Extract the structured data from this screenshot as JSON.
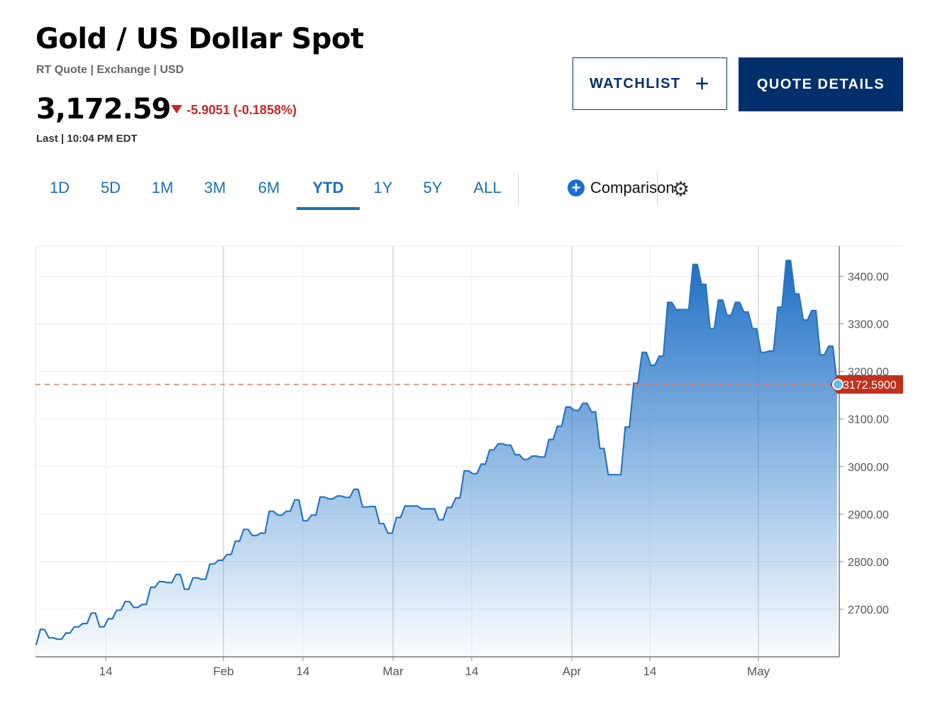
{
  "header": {
    "title": "Gold / US Dollar Spot",
    "subtitle": "RT Quote | Exchange | USD",
    "price": "3,172.59",
    "change": "-5.9051 (-0.1858%)",
    "last_label": "Last | 10:04 PM EDT"
  },
  "buttons": {
    "watchlist": "WATCHLIST",
    "watchlist_plus": "+",
    "quote_details": "QUOTE DETAILS"
  },
  "tabs": [
    "1D",
    "5D",
    "1M",
    "3M",
    "6M",
    "YTD",
    "1Y",
    "5Y",
    "ALL"
  ],
  "active_tab": "YTD",
  "comparison": {
    "label": "Comparison",
    "plus": "+"
  },
  "icons": {
    "settings": "gear-icon",
    "change_direction": "down-triangle-icon"
  },
  "colors": {
    "accent": "#1c6fb5",
    "brand": "#002f6c",
    "down": "#c62828",
    "line": "#2a74bc"
  },
  "chart_data": {
    "type": "area",
    "title": "",
    "xlabel": "",
    "ylabel": "",
    "ylim": [
      2600,
      3460
    ],
    "x_ticks": [
      "14",
      "Feb",
      "14",
      "Mar",
      "14",
      "Apr",
      "14",
      "May"
    ],
    "y_ticks": [
      "2700.00",
      "2800.00",
      "2900.00",
      "3000.00",
      "3100.00",
      "3200.00",
      "3300.00",
      "3400.00"
    ],
    "last_value_label": "3172.5900",
    "last_value": 3172.59,
    "reference_line": 3172.59,
    "grid": true,
    "values": [
      2625,
      2658,
      2657,
      2640,
      2640,
      2637,
      2637,
      2650,
      2650,
      2663,
      2663,
      2670,
      2670,
      2692,
      2692,
      2663,
      2663,
      2680,
      2680,
      2698,
      2698,
      2716,
      2716,
      2704,
      2704,
      2710,
      2710,
      2746,
      2746,
      2758,
      2758,
      2756,
      2756,
      2773,
      2773,
      2742,
      2742,
      2766,
      2766,
      2763,
      2763,
      2795,
      2795,
      2803,
      2803,
      2815,
      2815,
      2843,
      2843,
      2868,
      2868,
      2855,
      2855,
      2860,
      2860,
      2906,
      2906,
      2898,
      2898,
      2906,
      2906,
      2930,
      2930,
      2886,
      2886,
      2898,
      2898,
      2936,
      2936,
      2932,
      2932,
      2938,
      2938,
      2935,
      2935,
      2952,
      2952,
      2915,
      2915,
      2916,
      2916,
      2880,
      2880,
      2860,
      2860,
      2893,
      2893,
      2917,
      2917,
      2917,
      2917,
      2911,
      2911,
      2911,
      2911,
      2888,
      2888,
      2914,
      2914,
      2934,
      2934,
      2991,
      2991,
      2985,
      2985,
      3005,
      3005,
      3035,
      3035,
      3048,
      3048,
      3045,
      3045,
      3025,
      3025,
      3015,
      3015,
      3022,
      3022,
      3020,
      3020,
      3057,
      3057,
      3085,
      3085,
      3125,
      3125,
      3118,
      3118,
      3133,
      3133,
      3115,
      3115,
      3038,
      3038,
      2983,
      2983,
      2983,
      2983,
      3083,
      3083,
      3175,
      3175,
      3240,
      3240,
      3213,
      3213,
      3232,
      3232,
      3345,
      3345,
      3330,
      3330,
      3330,
      3330,
      3425,
      3425,
      3383,
      3383,
      3290,
      3290,
      3350,
      3350,
      3318,
      3318,
      3345,
      3345,
      3325,
      3325,
      3290,
      3290,
      3240,
      3240,
      3243,
      3243,
      3335,
      3335,
      3433,
      3433,
      3363,
      3363,
      3308,
      3308,
      3328,
      3328,
      3235,
      3235,
      3253,
      3253,
      3173
    ]
  }
}
